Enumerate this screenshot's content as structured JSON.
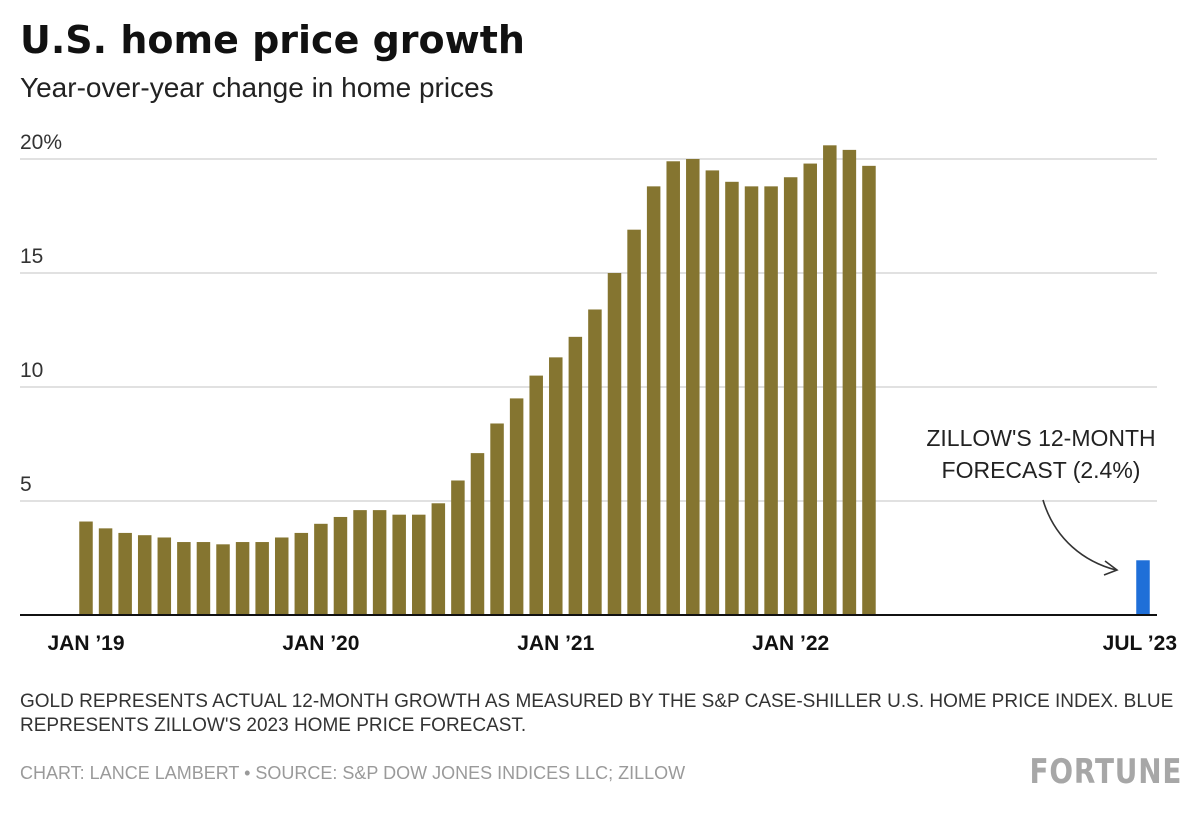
{
  "chart_data": {
    "type": "bar",
    "title": "U.S. home price growth",
    "subtitle": "Year-over-year change in home prices",
    "ylim": [
      0,
      20
    ],
    "yticks": [
      {
        "value": 5,
        "label": "5"
      },
      {
        "value": 10,
        "label": "10"
      },
      {
        "value": 15,
        "label": "15"
      },
      {
        "value": 20,
        "label": "20%"
      }
    ],
    "grid": true,
    "x_start": "2019-01",
    "x_end": "2023-07",
    "xticks": [
      {
        "date": "2019-01",
        "label": "JAN ’19"
      },
      {
        "date": "2020-01",
        "label": "JAN ’20"
      },
      {
        "date": "2021-01",
        "label": "JAN ’21"
      },
      {
        "date": "2022-01",
        "label": "JAN ’22"
      },
      {
        "date": "2023-07",
        "label": "JUL ’23"
      }
    ],
    "series": [
      {
        "color": "#857530",
        "dates": [
          "2019-01",
          "2019-02",
          "2019-03",
          "2019-04",
          "2019-05",
          "2019-06",
          "2019-07",
          "2019-08",
          "2019-09",
          "2019-10",
          "2019-11",
          "2019-12",
          "2020-01",
          "2020-02",
          "2020-03",
          "2020-04",
          "2020-05",
          "2020-06",
          "2020-07",
          "2020-08",
          "2020-09",
          "2020-10",
          "2020-11",
          "2020-12",
          "2021-01",
          "2021-02",
          "2021-03",
          "2021-04",
          "2021-05",
          "2021-06",
          "2021-07",
          "2021-08",
          "2021-09",
          "2021-10",
          "2021-11",
          "2021-12",
          "2022-01",
          "2022-02",
          "2022-03",
          "2022-04",
          "2022-05"
        ],
        "values": [
          4.1,
          3.8,
          3.6,
          3.5,
          3.4,
          3.2,
          3.2,
          3.1,
          3.2,
          3.2,
          3.4,
          3.6,
          4.0,
          4.3,
          4.6,
          4.6,
          4.4,
          4.4,
          4.9,
          5.9,
          7.1,
          8.4,
          9.5,
          10.5,
          11.3,
          12.2,
          13.4,
          15.0,
          16.9,
          18.8,
          19.9,
          20.0,
          19.5,
          19.0,
          18.8,
          18.8,
          19.2,
          19.8,
          20.6,
          20.4,
          19.7
        ]
      },
      {
        "color": "#1f6fd8",
        "dates": [
          "2023-07"
        ],
        "values": [
          2.4
        ]
      }
    ],
    "annotation": {
      "lines": [
        "ZILLOW'S 12-MONTH",
        "FORECAST (2.4%)"
      ]
    }
  },
  "note": "Gold represents actual 12-month growth as measured by the S&P Case-Shiller U.S. Home Price Index. Blue represents Zillow's 2023 home price forecast.",
  "credit": "CHART: LANCE LAMBERT • SOURCE: S&P DOW JONES INDICES LLC; ZILLOW",
  "logo": "FORTUNE"
}
